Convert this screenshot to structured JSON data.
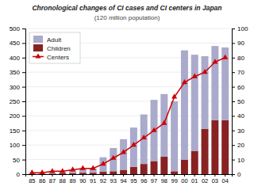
{
  "chart_data": {
    "type": "bar",
    "title": "Chronological changes of CI cases and CI centers in Japan",
    "subtitle": "(120 million population)",
    "categories": [
      "85",
      "86",
      "87",
      "88",
      "89",
      "90",
      "91",
      "92",
      "93",
      "94",
      "95",
      "96",
      "97",
      "98",
      "99",
      "00",
      "01",
      "02",
      "03",
      "04"
    ],
    "series": [
      {
        "name": "Children",
        "color": "#882222",
        "values": [
          1,
          1,
          2,
          3,
          4,
          5,
          5,
          8,
          10,
          15,
          25,
          35,
          45,
          60,
          10,
          50,
          80,
          155,
          185,
          185
        ]
      },
      {
        "name": "Adult",
        "color": "#aaaacc",
        "values": [
          2,
          2,
          3,
          5,
          8,
          12,
          15,
          50,
          80,
          105,
          135,
          170,
          210,
          215,
          240,
          375,
          330,
          250,
          255,
          250
        ]
      },
      {
        "name": "Centers",
        "color": "#cc0000",
        "type": "line",
        "marker": "triangle",
        "axis": "y2",
        "values": [
          1,
          1,
          2,
          2,
          3,
          4,
          4,
          7,
          11,
          15,
          20,
          25,
          30,
          35,
          53,
          63,
          67,
          70,
          77,
          80
        ]
      }
    ],
    "stacked": true,
    "ylim": [
      0,
      500
    ],
    "yticks": [
      0,
      50,
      100,
      150,
      200,
      250,
      300,
      350,
      400,
      450,
      500
    ],
    "y2lim": [
      0,
      100
    ],
    "y2ticks": [
      0,
      10,
      20,
      30,
      40,
      50,
      60,
      70,
      80,
      90,
      100
    ],
    "grid": true,
    "legend": "upper left"
  }
}
